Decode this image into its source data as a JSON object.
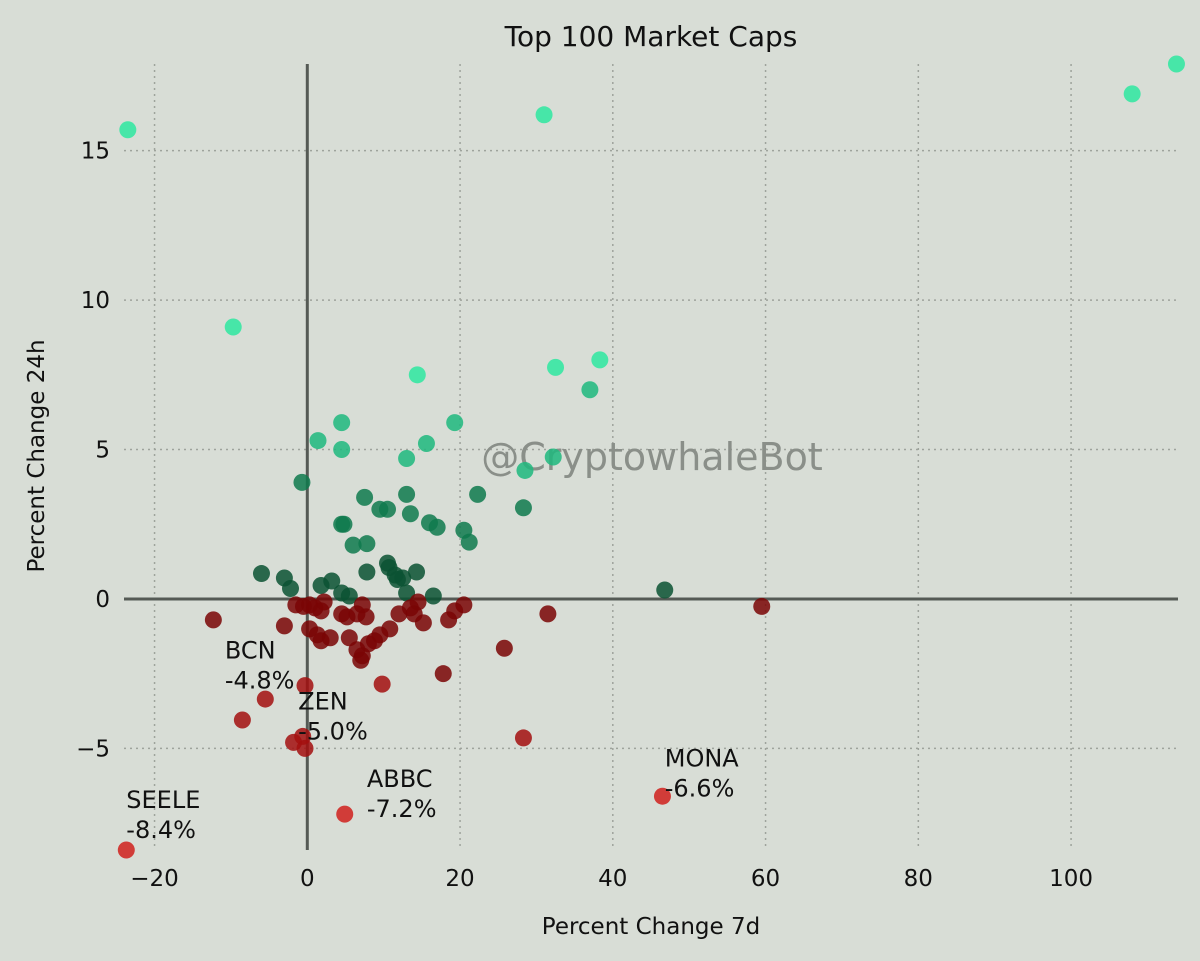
{
  "chart_data": {
    "type": "scatter",
    "title": "Top 100 Market Caps",
    "xlabel": "Percent Change 7d",
    "ylabel": "Percent Change 24h",
    "xlim": [
      -24,
      114
    ],
    "ylim": [
      -8.4,
      17.9
    ],
    "xticks": [
      -20,
      0,
      20,
      40,
      60,
      80,
      100
    ],
    "yticks": [
      -5,
      0,
      5,
      10,
      15
    ],
    "xtick_labels": [
      "−20",
      "0",
      "20",
      "40",
      "60",
      "80",
      "100"
    ],
    "ytick_labels": [
      "−5",
      "0",
      "5",
      "10",
      "15"
    ],
    "grid": true,
    "watermark": "@CryptowhaleBot",
    "colors": {
      "background": "#d8ddd6",
      "strong_up": "#2ee8a0",
      "mid_up": "#1fb87e",
      "weak_up": "#0f7a4e",
      "flat_up": "#0a5233",
      "weak_down": "#7a0505",
      "mid_down": "#a30f0f",
      "strong_down": "#d0201c"
    },
    "points": [
      {
        "x": -23.5,
        "y": 15.7
      },
      {
        "x": 31,
        "y": 16.2
      },
      {
        "x": 108,
        "y": 16.9
      },
      {
        "x": 113.8,
        "y": 17.9
      },
      {
        "x": -9.7,
        "y": 9.1
      },
      {
        "x": 32.5,
        "y": 7.75
      },
      {
        "x": 38.3,
        "y": 8.0
      },
      {
        "x": 37,
        "y": 7.0
      },
      {
        "x": 14.4,
        "y": 7.5
      },
      {
        "x": 4.5,
        "y": 5.9
      },
      {
        "x": 19.3,
        "y": 5.9
      },
      {
        "x": 1.4,
        "y": 5.3
      },
      {
        "x": 4.5,
        "y": 5.0
      },
      {
        "x": 15.6,
        "y": 5.2
      },
      {
        "x": 32.2,
        "y": 4.75
      },
      {
        "x": 13,
        "y": 4.7
      },
      {
        "x": 28.5,
        "y": 4.3
      },
      {
        "x": -0.7,
        "y": 3.9
      },
      {
        "x": 13,
        "y": 3.5
      },
      {
        "x": 22.3,
        "y": 3.5
      },
      {
        "x": 7.5,
        "y": 3.4
      },
      {
        "x": 9.5,
        "y": 3.0
      },
      {
        "x": 10.5,
        "y": 3.0
      },
      {
        "x": 28.3,
        "y": 3.05
      },
      {
        "x": 13.5,
        "y": 2.85
      },
      {
        "x": 4.5,
        "y": 2.5
      },
      {
        "x": 4.8,
        "y": 2.5
      },
      {
        "x": 16,
        "y": 2.55
      },
      {
        "x": 17,
        "y": 2.4
      },
      {
        "x": 20.5,
        "y": 2.3
      },
      {
        "x": 21.2,
        "y": 1.9
      },
      {
        "x": 6,
        "y": 1.8
      },
      {
        "x": 7.8,
        "y": 1.85
      },
      {
        "x": 10.5,
        "y": 1.2
      },
      {
        "x": 10.7,
        "y": 1.05
      },
      {
        "x": 11.5,
        "y": 0.8
      },
      {
        "x": 11.8,
        "y": 0.65
      },
      {
        "x": 12.5,
        "y": 0.7
      },
      {
        "x": 14.3,
        "y": 0.9
      },
      {
        "x": 7.8,
        "y": 0.9
      },
      {
        "x": -6,
        "y": 0.85
      },
      {
        "x": -3,
        "y": 0.7
      },
      {
        "x": 3.2,
        "y": 0.6
      },
      {
        "x": 1.8,
        "y": 0.45
      },
      {
        "x": -2.2,
        "y": 0.35
      },
      {
        "x": 4.5,
        "y": 0.2
      },
      {
        "x": 5.5,
        "y": 0.1
      },
      {
        "x": 13,
        "y": 0.2
      },
      {
        "x": 16.5,
        "y": 0.1
      },
      {
        "x": 46.8,
        "y": 0.3
      },
      {
        "x": -12.3,
        "y": -0.7
      },
      {
        "x": -3,
        "y": -0.9
      },
      {
        "x": -1.5,
        "y": -0.2
      },
      {
        "x": -0.5,
        "y": -0.25
      },
      {
        "x": 0.3,
        "y": -0.2
      },
      {
        "x": 1,
        "y": -0.3
      },
      {
        "x": 1.8,
        "y": -0.4
      },
      {
        "x": 2.2,
        "y": -0.1
      },
      {
        "x": 0.3,
        "y": -1.0
      },
      {
        "x": 1.3,
        "y": -1.2
      },
      {
        "x": 1.8,
        "y": -1.4
      },
      {
        "x": 3,
        "y": -1.3
      },
      {
        "x": 4.5,
        "y": -0.5
      },
      {
        "x": 5.2,
        "y": -0.6
      },
      {
        "x": 6.5,
        "y": -0.5
      },
      {
        "x": 7.2,
        "y": -0.2
      },
      {
        "x": 7.7,
        "y": -0.6
      },
      {
        "x": 5.5,
        "y": -1.3
      },
      {
        "x": 6.5,
        "y": -1.7
      },
      {
        "x": 7.2,
        "y": -1.9
      },
      {
        "x": 7,
        "y": -2.05
      },
      {
        "x": 8,
        "y": -1.5
      },
      {
        "x": 8.8,
        "y": -1.4
      },
      {
        "x": 9.5,
        "y": -1.2
      },
      {
        "x": 10.8,
        "y": -1.0
      },
      {
        "x": 12,
        "y": -0.5
      },
      {
        "x": 13.5,
        "y": -0.3
      },
      {
        "x": 14,
        "y": -0.5
      },
      {
        "x": 14.5,
        "y": -0.1
      },
      {
        "x": 15.2,
        "y": -0.8
      },
      {
        "x": 18.5,
        "y": -0.7
      },
      {
        "x": 19.3,
        "y": -0.4
      },
      {
        "x": 20.5,
        "y": -0.2
      },
      {
        "x": 17.8,
        "y": -2.5
      },
      {
        "x": 25.8,
        "y": -1.65
      },
      {
        "x": 31.5,
        "y": -0.5
      },
      {
        "x": 59.5,
        "y": -0.25
      },
      {
        "x": 9.8,
        "y": -2.85
      },
      {
        "x": -0.3,
        "y": -2.9
      },
      {
        "x": -5.5,
        "y": -3.35
      },
      {
        "x": -8.5,
        "y": -4.05
      },
      {
        "x": -1.8,
        "y": -4.8
      },
      {
        "x": -0.6,
        "y": -4.6
      },
      {
        "x": -0.3,
        "y": -5.0
      },
      {
        "x": 28.3,
        "y": -4.65
      },
      {
        "x": 46.5,
        "y": -6.6
      },
      {
        "x": 4.9,
        "y": -7.2
      },
      {
        "x": -23.7,
        "y": -8.4
      }
    ],
    "annotations": [
      {
        "name": "BCN",
        "pct": "-4.8%",
        "x": -10.8,
        "y": -2.0
      },
      {
        "name": "ZEN",
        "pct": "-5.0%",
        "x": -1.2,
        "y": -3.7
      },
      {
        "name": "ABBC",
        "pct": "-7.2%",
        "x": 7.8,
        "y": -6.3
      },
      {
        "name": "MONA",
        "pct": "-6.6%",
        "x": 46.8,
        "y": -5.6
      },
      {
        "name": "SEELE",
        "pct": "-8.4%",
        "x": -23.7,
        "y": -7.0
      }
    ]
  }
}
